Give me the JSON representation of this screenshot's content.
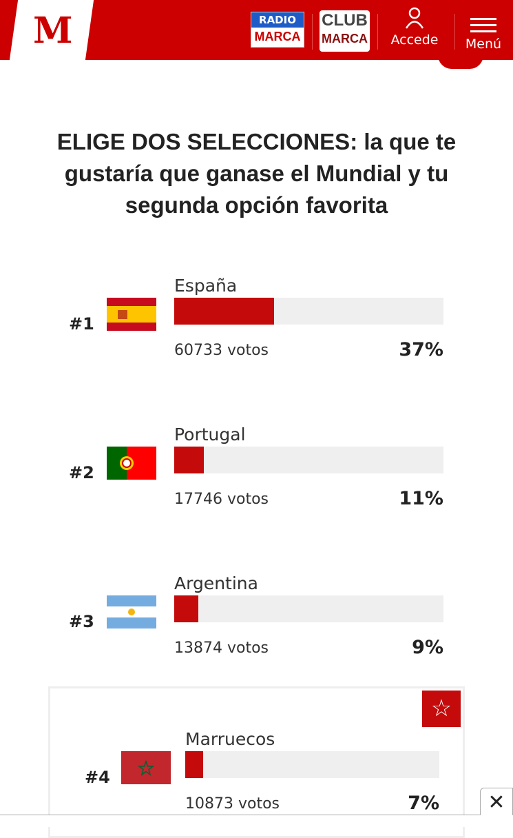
{
  "header": {
    "logo": "M",
    "radio_top": "RADIO",
    "radio_bottom": "MARCA",
    "club_top": "CLUB",
    "club_bottom": "MARCA",
    "accede": "Accede",
    "menu": "Menú"
  },
  "poll": {
    "title": "ELIGE DOS SELECCIONES: la que te gustaría que ganase el Mundial y tu segunda opción favorita",
    "items": [
      {
        "rank": "#1",
        "name": "España",
        "votes": "60733 votos",
        "percent": "37%",
        "value": 37,
        "flag": "spain"
      },
      {
        "rank": "#2",
        "name": "Portugal",
        "votes": "17746 votos",
        "percent": "11%",
        "value": 11,
        "flag": "portugal"
      },
      {
        "rank": "#3",
        "name": "Argentina",
        "votes": "13874 votos",
        "percent": "9%",
        "value": 9,
        "flag": "argentina"
      },
      {
        "rank": "#4",
        "name": "Marruecos",
        "votes": "10873 votos",
        "percent": "7%",
        "value": 7,
        "flag": "morocco"
      }
    ]
  },
  "icons": {
    "star": "☆",
    "close": "✕"
  },
  "colors": {
    "brand": "#cc0000",
    "bar": "#c40a0a",
    "track": "#efefef"
  }
}
